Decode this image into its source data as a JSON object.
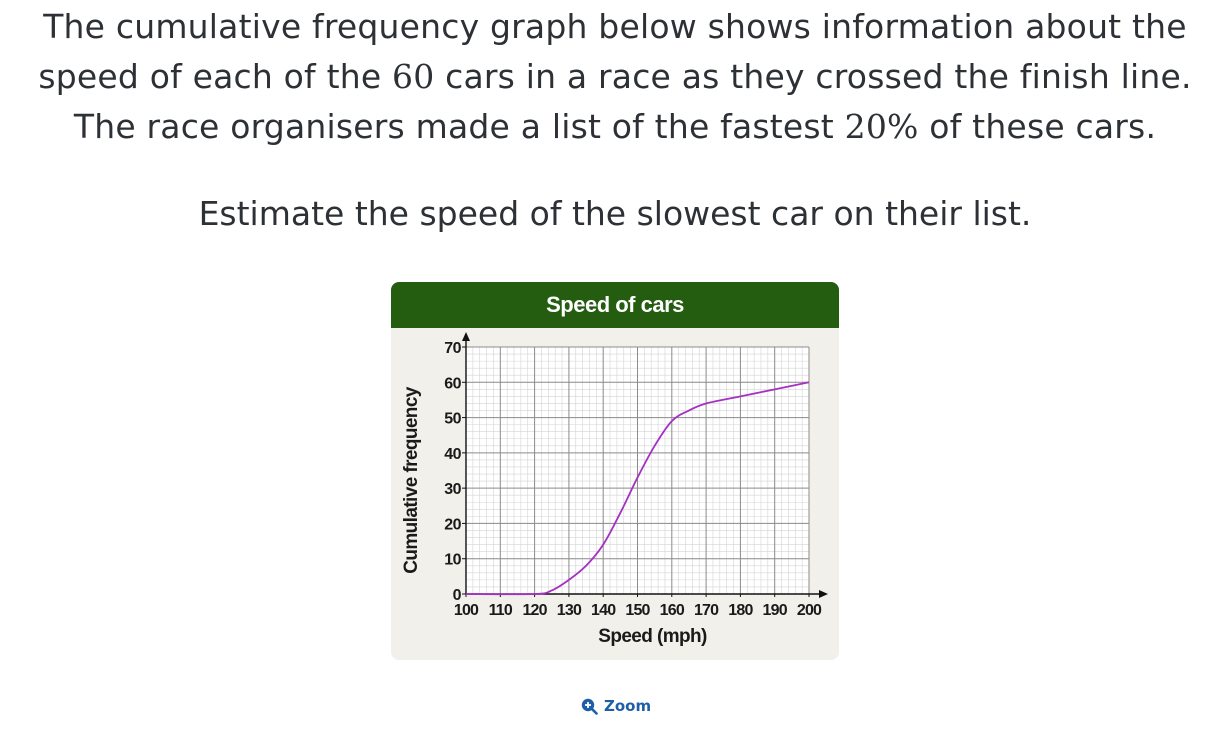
{
  "question": {
    "line1": "The cumulative frequency graph below shows information about the",
    "line2_pre": "speed of each of the ",
    "line2_num": "60",
    "line2_post": " cars in a race as they crossed the finish line.",
    "line3_pre": "The race organisers made a list of the fastest ",
    "line3_num": "20%",
    "line3_post": " of these cars.",
    "prompt": "Estimate the speed of the slowest car on their list."
  },
  "zoom": {
    "label": "Zoom",
    "icon": "zoom-in-icon"
  },
  "chart_data": {
    "type": "line",
    "title": "Speed of cars",
    "xlabel": "Speed (mph)",
    "ylabel": "Cumulative frequency",
    "xlim": [
      100,
      200
    ],
    "ylim": [
      0,
      70
    ],
    "x_ticks": [
      100,
      110,
      120,
      130,
      140,
      150,
      160,
      170,
      180,
      190,
      200
    ],
    "y_ticks": [
      0,
      10,
      20,
      30,
      40,
      50,
      60,
      70
    ],
    "grid": true,
    "series": [
      {
        "color": "#a62fc4",
        "x": [
          100,
          120,
          125,
          130,
          135,
          140,
          145,
          150,
          155,
          160,
          165,
          170,
          180,
          190,
          200
        ],
        "y": [
          0,
          0,
          1,
          4,
          8,
          14,
          23,
          33,
          42,
          49,
          52,
          54,
          56,
          58,
          60
        ]
      }
    ],
    "colors": {
      "header": "#245c10",
      "background": "#f2f0ea",
      "curve": "#a62fc4"
    }
  }
}
